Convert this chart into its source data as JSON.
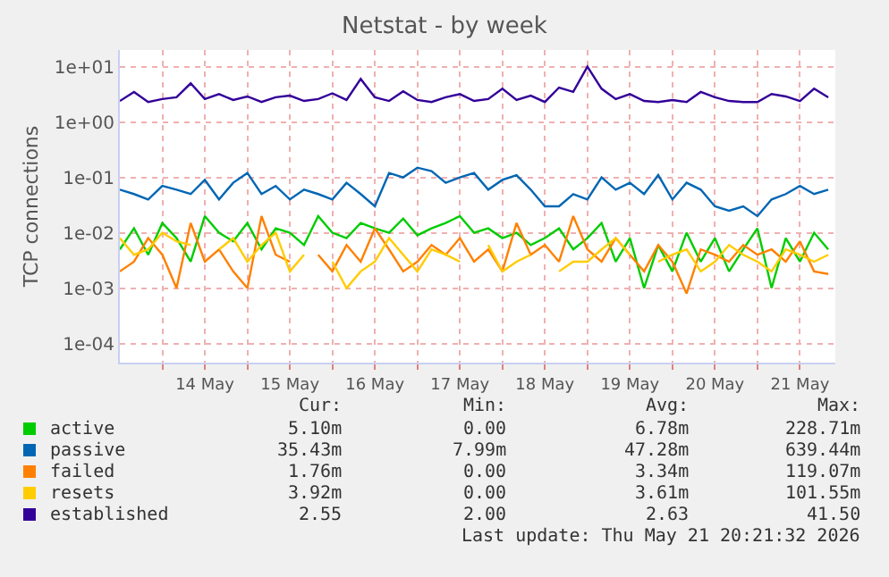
{
  "chart_data": {
    "type": "line",
    "title": "Netstat - by week",
    "ylabel": "TCP connections",
    "log": true,
    "grid": true,
    "legend": "bottom left",
    "marker": "none",
    "line_style": "solid",
    "x": [
      "2026-05-13T12:00",
      "2026-05-13T16:00",
      "2026-05-13T20:00",
      "2026-05-14T00:00",
      "2026-05-14T04:00",
      "2026-05-14T08:00",
      "2026-05-14T12:00",
      "2026-05-14T16:00",
      "2026-05-14T20:00",
      "2026-05-15T00:00",
      "2026-05-15T04:00",
      "2026-05-15T08:00",
      "2026-05-15T12:00",
      "2026-05-15T16:00",
      "2026-05-15T20:00",
      "2026-05-16T00:00",
      "2026-05-16T04:00",
      "2026-05-16T08:00",
      "2026-05-16T12:00",
      "2026-05-16T16:00",
      "2026-05-16T20:00",
      "2026-05-17T00:00",
      "2026-05-17T04:00",
      "2026-05-17T08:00",
      "2026-05-17T12:00",
      "2026-05-17T16:00",
      "2026-05-17T20:00",
      "2026-05-18T00:00",
      "2026-05-18T04:00",
      "2026-05-18T08:00",
      "2026-05-18T12:00",
      "2026-05-18T16:00",
      "2026-05-18T20:00",
      "2026-05-19T00:00",
      "2026-05-19T04:00",
      "2026-05-19T08:00",
      "2026-05-19T12:00",
      "2026-05-19T16:00",
      "2026-05-19T20:00",
      "2026-05-20T00:00",
      "2026-05-20T04:00",
      "2026-05-20T08:00",
      "2026-05-20T12:00",
      "2026-05-20T16:00",
      "2026-05-20T20:00",
      "2026-05-21T00:00",
      "2026-05-21T04:00",
      "2026-05-21T08:00",
      "2026-05-21T12:00",
      "2026-05-21T16:00",
      "2026-05-21T20:00"
    ],
    "xlim": [
      "2026-05-13T12:00",
      "2026-05-21T22:00"
    ],
    "xticks": [
      {
        "value": "2026-05-14T00:00",
        "label": null
      },
      {
        "value": "2026-05-14T12:00",
        "label": "14 May"
      },
      {
        "value": "2026-05-15T00:00",
        "label": null
      },
      {
        "value": "2026-05-15T12:00",
        "label": "15 May"
      },
      {
        "value": "2026-05-16T00:00",
        "label": null
      },
      {
        "value": "2026-05-16T12:00",
        "label": "16 May"
      },
      {
        "value": "2026-05-17T00:00",
        "label": null
      },
      {
        "value": "2026-05-17T12:00",
        "label": "17 May"
      },
      {
        "value": "2026-05-18T00:00",
        "label": null
      },
      {
        "value": "2026-05-18T12:00",
        "label": "18 May"
      },
      {
        "value": "2026-05-19T00:00",
        "label": null
      },
      {
        "value": "2026-05-19T12:00",
        "label": "19 May"
      },
      {
        "value": "2026-05-20T00:00",
        "label": null
      },
      {
        "value": "2026-05-20T12:00",
        "label": "20 May"
      },
      {
        "value": "2026-05-21T00:00",
        "label": null
      },
      {
        "value": "2026-05-21T12:00",
        "label": "21 May"
      }
    ],
    "ylim": [
      4.5e-05,
      20
    ],
    "yticks": [
      {
        "value": 0.0001,
        "label": "1e-04"
      },
      {
        "value": 0.001,
        "label": "1e-03"
      },
      {
        "value": 0.01,
        "label": "1e-02"
      },
      {
        "value": 0.1,
        "label": "1e-01"
      },
      {
        "value": 1,
        "label": "1e+00"
      },
      {
        "value": 10,
        "label": "1e+01"
      }
    ],
    "series": [
      {
        "name": "active",
        "color": "#00cc00",
        "values": [
          0.005,
          0.012,
          0.004,
          0.015,
          0.008,
          0.003,
          0.02,
          0.01,
          0.007,
          0.015,
          0.005,
          0.012,
          0.01,
          0.006,
          0.02,
          0.01,
          0.008,
          0.015,
          0.012,
          0.01,
          0.018,
          0.009,
          0.012,
          0.015,
          0.02,
          0.01,
          0.012,
          0.008,
          0.01,
          0.006,
          0.008,
          0.012,
          0.005,
          0.008,
          0.015,
          0.003,
          0.008,
          0.001,
          0.006,
          0.002,
          0.01,
          0.003,
          0.008,
          0.002,
          0.005,
          0.012,
          0.001,
          0.008,
          0.003,
          0.01,
          0.005
        ]
      },
      {
        "name": "passive",
        "color": "#0066b3",
        "values": [
          0.06,
          0.05,
          0.04,
          0.07,
          0.06,
          0.05,
          0.09,
          0.04,
          0.08,
          0.12,
          0.05,
          0.07,
          0.04,
          0.06,
          0.05,
          0.04,
          0.08,
          0.05,
          0.03,
          0.12,
          0.1,
          0.15,
          0.13,
          0.08,
          0.1,
          0.12,
          0.06,
          0.09,
          0.11,
          0.06,
          0.03,
          0.03,
          0.05,
          0.04,
          0.1,
          0.06,
          0.08,
          0.05,
          0.11,
          0.04,
          0.08,
          0.06,
          0.03,
          0.025,
          0.03,
          0.02,
          0.04,
          0.05,
          0.07,
          0.05,
          0.06
        ]
      },
      {
        "name": "failed",
        "color": "#ff8000",
        "values": [
          0.002,
          0.003,
          0.008,
          0.004,
          0.001,
          0.015,
          0.003,
          0.005,
          0.002,
          0.001,
          0.02,
          0.004,
          0.003,
          null,
          0.004,
          0.002,
          0.006,
          0.003,
          0.012,
          0.005,
          0.002,
          0.003,
          0.006,
          0.004,
          0.008,
          0.003,
          0.005,
          0.002,
          0.015,
          0.004,
          0.006,
          0.003,
          0.02,
          0.005,
          0.003,
          0.008,
          0.004,
          0.002,
          0.006,
          0.003,
          0.0008,
          0.005,
          0.004,
          0.003,
          0.006,
          0.004,
          0.005,
          0.003,
          0.007,
          0.002,
          0.0018
        ]
      },
      {
        "name": "resets",
        "color": "#ffcc00",
        "values": [
          0.008,
          0.004,
          0.005,
          0.01,
          0.007,
          0.006,
          null,
          0.005,
          0.008,
          0.003,
          0.006,
          0.01,
          0.002,
          0.004,
          null,
          0.003,
          0.001,
          0.002,
          0.003,
          0.008,
          0.004,
          0.002,
          0.005,
          0.004,
          0.003,
          null,
          0.006,
          0.002,
          0.003,
          0.004,
          null,
          0.002,
          0.003,
          0.003,
          0.005,
          0.008,
          0.004,
          null,
          0.003,
          0.004,
          0.005,
          0.002,
          0.003,
          0.006,
          0.004,
          0.003,
          0.002,
          0.005,
          0.004,
          0.003,
          0.004
        ]
      },
      {
        "name": "established",
        "color": "#330099",
        "values": [
          2.4,
          3.5,
          2.3,
          2.6,
          2.8,
          5,
          2.6,
          3.2,
          2.5,
          2.9,
          2.3,
          2.8,
          3,
          2.4,
          2.6,
          3.3,
          2.5,
          6,
          2.8,
          2.4,
          3.6,
          2.5,
          2.3,
          2.8,
          3.2,
          2.4,
          2.6,
          4,
          2.5,
          3,
          2.3,
          4.2,
          3.5,
          10,
          4,
          2.6,
          3.2,
          2.4,
          2.3,
          2.5,
          2.3,
          3.5,
          2.8,
          2.4,
          2.3,
          2.3,
          3.2,
          2.9,
          2.4,
          4,
          2.8
        ]
      }
    ],
    "annotations": [
      "Cur:",
      "Min:",
      "Avg:",
      "Max:",
      "5.10m",
      "0.00",
      "6.78m",
      "228.71m",
      "35.43m",
      "7.99m",
      "47.28m",
      "639.44m",
      "1.76m",
      "0.00",
      "3.34m",
      "119.07m",
      "3.92m",
      "0.00",
      "3.61m",
      "101.55m",
      "2.55",
      "2.00",
      "2.63",
      "41.50",
      "Last update: Thu May 21 20:21:32 2026"
    ]
  }
}
